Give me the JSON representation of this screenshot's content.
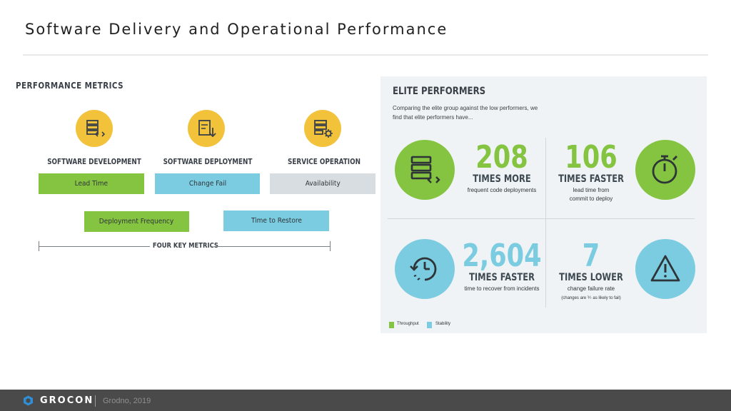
{
  "slide": {
    "title": "Software Delivery and Operational Performance"
  },
  "performance_metrics": {
    "title": "PERFORMANCE METRICS",
    "categories": [
      {
        "label": "SOFTWARE DEVELOPMENT",
        "icon": "code-server-icon"
      },
      {
        "label": "SOFTWARE DEPLOYMENT",
        "icon": "deploy-document-icon"
      },
      {
        "label": "SERVICE OPERATION",
        "icon": "server-gear-icon"
      }
    ],
    "metrics": {
      "lead_time": "Lead Time",
      "change_fail": "Change Fail",
      "availability": "Availability",
      "deployment_frequency": "Deployment Frequency",
      "time_to_restore": "Time to Restore"
    },
    "four_key_metrics": "FOUR KEY METRICS"
  },
  "elite": {
    "title": "ELITE PERFORMERS",
    "intro": "Comparing the elite group against the low performers, we find that elite performers have...",
    "stats": [
      {
        "number": "208",
        "unit": "TIMES MORE",
        "desc": "frequent code deployments",
        "icon": "code-server-icon"
      },
      {
        "number": "106",
        "unit": "TIMES FASTER",
        "desc_line1": "lead time from",
        "desc_line2": "commit to deploy",
        "icon": "stopwatch-icon"
      },
      {
        "number": "2,604",
        "unit": "TIMES FASTER",
        "desc": "time to recover from incidents",
        "icon": "clock-restore-icon"
      },
      {
        "number": "7",
        "unit": "TIMES LOWER",
        "desc": "change failure rate",
        "note": "(changes are ⅐ as likely to fail)",
        "icon": "warning-icon"
      }
    ],
    "legend": {
      "throughput": "Throughput",
      "stability": "Stability"
    }
  },
  "colors": {
    "yellow": "#f2c23a",
    "green": "#84c441",
    "blue": "#7bcce0",
    "gray": "#d8dde2",
    "footer": "#4a4a4a"
  },
  "footer": {
    "brand": "GROCON",
    "text": "Grodno, 2019"
  }
}
